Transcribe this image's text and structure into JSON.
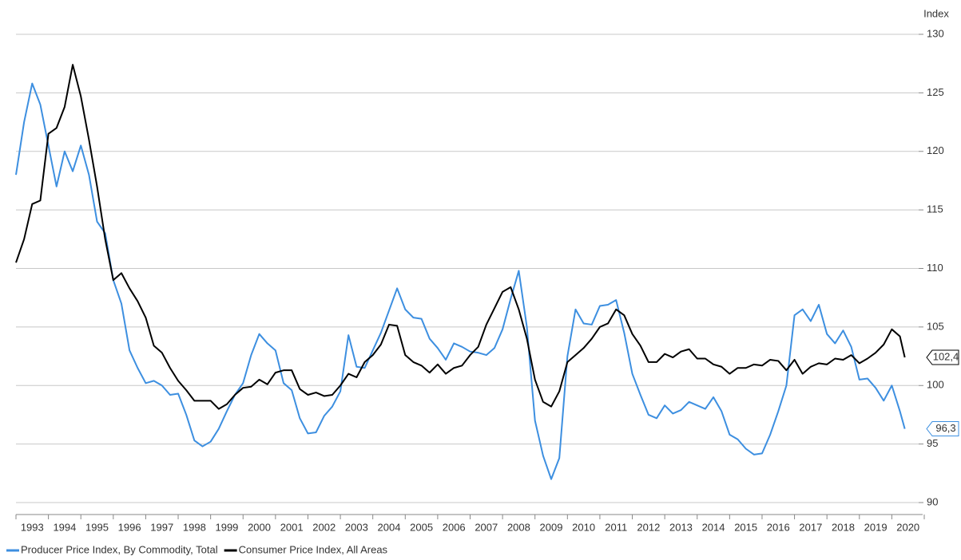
{
  "chart_data": {
    "type": "line",
    "y_axis_label": "Index",
    "x": [
      1993,
      1993.25,
      1993.5,
      1993.75,
      1994,
      1994.25,
      1994.5,
      1994.75,
      1995,
      1995.25,
      1995.5,
      1995.75,
      1996,
      1996.25,
      1996.5,
      1996.75,
      1997,
      1997.25,
      1997.5,
      1997.75,
      1998,
      1998.25,
      1998.5,
      1998.75,
      1999,
      1999.25,
      1999.5,
      1999.75,
      2000,
      2000.25,
      2000.5,
      2000.75,
      2001,
      2001.25,
      2001.5,
      2001.75,
      2002,
      2002.25,
      2002.5,
      2002.75,
      2003,
      2003.25,
      2003.5,
      2003.75,
      2004,
      2004.25,
      2004.5,
      2004.75,
      2005,
      2005.25,
      2005.5,
      2005.75,
      2006,
      2006.25,
      2006.5,
      2006.75,
      2007,
      2007.25,
      2007.5,
      2007.75,
      2008,
      2008.25,
      2008.5,
      2008.75,
      2009,
      2009.25,
      2009.5,
      2009.75,
      2010,
      2010.25,
      2010.5,
      2010.75,
      2011,
      2011.25,
      2011.5,
      2011.75,
      2012,
      2012.25,
      2012.5,
      2012.75,
      2013,
      2013.25,
      2013.5,
      2013.75,
      2014,
      2014.25,
      2014.5,
      2014.75,
      2015,
      2015.25,
      2015.5,
      2015.75,
      2016,
      2016.25,
      2016.5,
      2016.75,
      2017,
      2017.25,
      2017.5,
      2017.75,
      2018,
      2018.25,
      2018.5,
      2018.75,
      2019,
      2019.25,
      2019.5,
      2019.75,
      2020,
      2020.25,
      2020.4
    ],
    "series": [
      {
        "name": "Producer Price Index, By Commodity, Total",
        "color": "#3d8fe0",
        "end_label": "96,3",
        "values": [
          118.0,
          122.5,
          125.8,
          124.0,
          120.5,
          117.0,
          120.0,
          118.3,
          120.5,
          118.0,
          114.0,
          113.0,
          109.0,
          107.0,
          103.0,
          101.5,
          100.2,
          100.4,
          100.0,
          99.2,
          99.3,
          97.5,
          95.3,
          94.8,
          95.2,
          96.3,
          97.8,
          99.2,
          100.2,
          102.6,
          104.4,
          103.6,
          103.0,
          100.2,
          99.6,
          97.2,
          95.9,
          96.0,
          97.4,
          98.2,
          99.5,
          104.3,
          101.6,
          101.5,
          103.0,
          104.5,
          106.4,
          108.3,
          106.5,
          105.8,
          105.7,
          104.0,
          103.2,
          102.2,
          103.6,
          103.3,
          102.9,
          102.8,
          102.6,
          103.2,
          104.8,
          107.4,
          109.8,
          105.0,
          97.0,
          94.0,
          92.0,
          93.8,
          102.5,
          106.5,
          105.3,
          105.2,
          106.8,
          106.9,
          107.3,
          104.5,
          101.0,
          99.2,
          97.5,
          97.2,
          98.3,
          97.6,
          97.9,
          98.6,
          98.3,
          98.0,
          99.0,
          97.8,
          95.8,
          95.4,
          94.6,
          94.1,
          94.2,
          95.8,
          97.8,
          100.0,
          106.0,
          106.5,
          105.5,
          106.9,
          104.4,
          103.6,
          104.7,
          103.3,
          100.5,
          100.6,
          99.8,
          98.7,
          100.0,
          97.8,
          96.3
        ]
      },
      {
        "name": "Consumer Price Index, All Areas",
        "color": "#000000",
        "end_label": "102,4",
        "values": [
          110.5,
          112.5,
          115.5,
          115.8,
          121.5,
          122.0,
          123.8,
          127.4,
          124.7,
          121.0,
          117.0,
          112.5,
          109.0,
          109.6,
          108.3,
          107.2,
          105.8,
          103.4,
          102.8,
          101.5,
          100.4,
          99.6,
          98.7,
          98.7,
          98.7,
          98.0,
          98.4,
          99.2,
          99.8,
          99.9,
          100.5,
          100.1,
          101.1,
          101.3,
          101.3,
          99.7,
          99.2,
          99.4,
          99.1,
          99.2,
          100.0,
          101.0,
          100.7,
          102.0,
          102.6,
          103.5,
          105.2,
          105.1,
          102.6,
          102.0,
          101.7,
          101.1,
          101.8,
          101.0,
          101.5,
          101.7,
          102.6,
          103.3,
          105.2,
          106.6,
          108.0,
          108.4,
          106.5,
          104.0,
          100.5,
          98.6,
          98.2,
          99.5,
          102.0,
          102.6,
          103.2,
          104.0,
          105.0,
          105.3,
          106.5,
          106.0,
          104.4,
          103.4,
          102.0,
          102.0,
          102.7,
          102.4,
          102.9,
          103.1,
          102.3,
          102.3,
          101.8,
          101.6,
          101.0,
          101.5,
          101.5,
          101.8,
          101.7,
          102.2,
          102.1,
          101.3,
          102.2,
          101.0,
          101.6,
          101.9,
          101.8,
          102.3,
          102.2,
          102.6,
          101.9,
          102.3,
          102.8,
          103.5,
          104.8,
          104.2,
          102.4
        ]
      }
    ],
    "xlim": [
      1993,
      2021
    ],
    "xticks": [
      1993,
      1994,
      1995,
      1996,
      1997,
      1998,
      1999,
      2000,
      2001,
      2002,
      2003,
      2004,
      2005,
      2006,
      2007,
      2008,
      2009,
      2010,
      2011,
      2012,
      2013,
      2014,
      2015,
      2016,
      2017,
      2018,
      2019,
      2020
    ],
    "ylim": [
      90,
      130
    ],
    "yticks": [
      90,
      95,
      100,
      105,
      110,
      115,
      120,
      125,
      130
    ],
    "grid": true,
    "legend": "bottom-left"
  }
}
